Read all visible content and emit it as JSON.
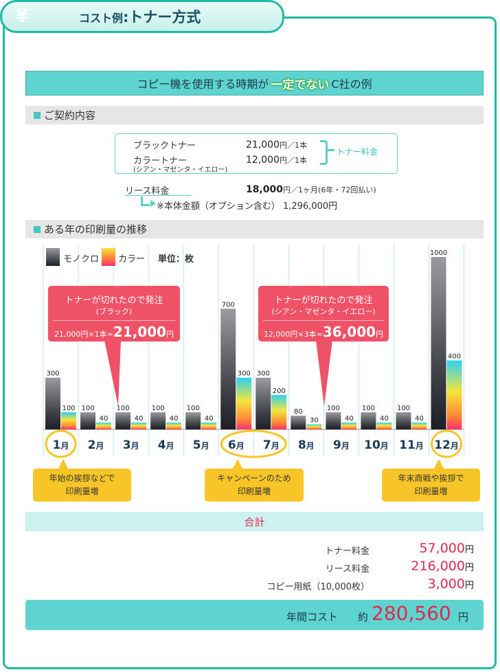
{
  "header": {
    "yen_icon": "¥",
    "title_prefix": "コスト例",
    "title_sep": ":",
    "title_main": "トナー方式"
  },
  "example_bar": {
    "before": "コピー機を使用する時期が",
    "highlight": "一定でない",
    "after": "C社の例"
  },
  "contract": {
    "section_title": "ご契約内容",
    "black_toner_label": "ブラックトナー",
    "black_toner_price": "21,000",
    "black_toner_unit": "円／1本",
    "color_toner_label": "カラートナー",
    "color_toner_price": "12,000",
    "color_toner_unit": "円／1本",
    "color_toner_sub": "(シアン・マゼンタ・イエロー)",
    "toner_fee_label": "トナー料金",
    "lease_label": "リース料金",
    "lease_price": "18,000",
    "lease_unit": "円／1ヶ月(6年・72回払い)",
    "body_price_note": "※本体金額（オプション含む） 1,296,000円"
  },
  "volume_section": {
    "title": "ある年の印刷量の推移"
  },
  "legend": {
    "mono": "モノクロ",
    "color": "カラー",
    "unit": "単位：枚"
  },
  "chart_data": {
    "type": "bar",
    "categories": [
      "1月",
      "2月",
      "3月",
      "4月",
      "5月",
      "6月",
      "7月",
      "8月",
      "9月",
      "10月",
      "11月",
      "12月"
    ],
    "series": [
      {
        "name": "モノクロ",
        "values": [
          300,
          100,
          100,
          100,
          100,
          700,
          300,
          80,
          100,
          100,
          100,
          1000
        ]
      },
      {
        "name": "カラー",
        "values": [
          100,
          40,
          40,
          40,
          40,
          300,
          200,
          30,
          40,
          40,
          40,
          400
        ]
      }
    ],
    "ylim": [
      0,
      1000
    ],
    "unit": "単位：枚",
    "highlighted_months": [
      "1月",
      "6月",
      "7月",
      "12月"
    ]
  },
  "callouts": [
    {
      "title": "トナーが切れたので発注",
      "sub": "(ブラック)",
      "calc": "21,000円×1本=",
      "amount": "21,000",
      "yen": "円"
    },
    {
      "title": "トナーが切れたので発注",
      "sub": "(シアン・マゼンタ・イエロー)",
      "calc": "12,000円×3本=",
      "amount": "36,000",
      "yen": "円"
    }
  ],
  "notes": [
    {
      "line1": "年始の挨拶などで",
      "line2": "印刷量増"
    },
    {
      "line1": "キャンペーンのため",
      "line2": "印刷量増"
    },
    {
      "line1": "年末商戦や挨拶で",
      "line2": "印刷量増"
    }
  ],
  "totals": {
    "title": "合計",
    "rows": [
      {
        "label": "トナー料金",
        "value": "57,000",
        "yen": "円"
      },
      {
        "label": "リース料金",
        "value": "216,000",
        "yen": "円"
      },
      {
        "label": "コピー用紙（10,000枚）",
        "value": "3,000",
        "yen": "円"
      }
    ],
    "annual_label": "年間コスト",
    "annual_prefix": "約",
    "annual_value": "280,560",
    "annual_yen": "円"
  },
  "colors": {
    "teal": "#1fb9a6",
    "pink": "#ef5166",
    "yellow": "#f7c528",
    "red_text": "#e0284f"
  }
}
